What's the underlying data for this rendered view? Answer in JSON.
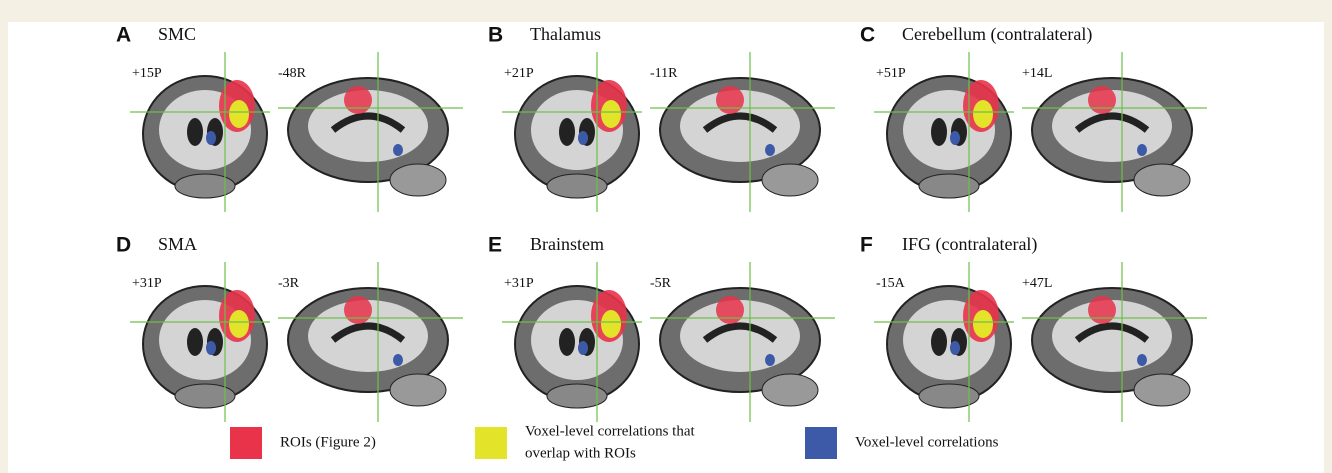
{
  "figure": {
    "panels": [
      {
        "letter": "A",
        "title": "SMC",
        "slices": [
          "+15P",
          "-48R"
        ]
      },
      {
        "letter": "B",
        "title": "Thalamus",
        "slices": [
          "+21P",
          "-11R"
        ]
      },
      {
        "letter": "C",
        "title": "Cerebellum (contralateral)",
        "slices": [
          "+51P",
          "+14L"
        ]
      },
      {
        "letter": "D",
        "title": "SMA",
        "slices": [
          "+31P",
          "-3R"
        ]
      },
      {
        "letter": "E",
        "title": "Brainstem",
        "slices": [
          "+31P",
          "-5R"
        ]
      },
      {
        "letter": "F",
        "title": "IFG (contralateral)",
        "slices": [
          "-15A",
          "+47L"
        ]
      }
    ],
    "legend": [
      {
        "color": "#e8334a",
        "lines": [
          "ROIs (Figure 2)"
        ]
      },
      {
        "color": "#e3e32a",
        "lines": [
          "Voxel-level correlations that",
          "overlap with ROIs"
        ]
      },
      {
        "color": "#3d5aa8",
        "lines": [
          "Voxel-level correlations"
        ]
      }
    ]
  }
}
